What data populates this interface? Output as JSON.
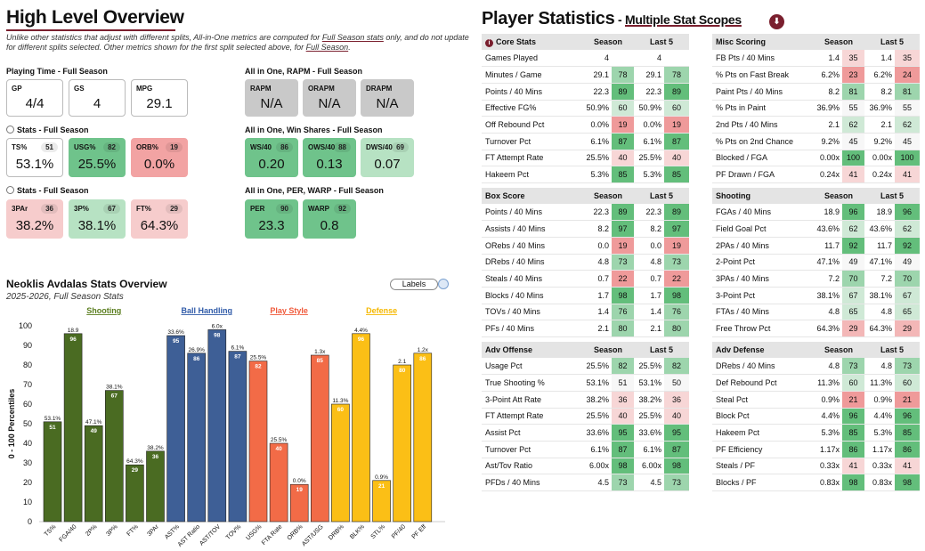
{
  "overview": {
    "title": "High Level Overview",
    "note_parts": [
      "Unlike other statistics that adjust with different splits, All-in-One metrics are computed for ",
      "Full Season stats",
      " only, and do not update for different splits selected. Other metrics shown for the first split selected above, for ",
      "Full Season",
      "."
    ],
    "sections": {
      "playing_time": "Playing Time - Full Season",
      "stats1": "Stats - Full Season",
      "stats2": "Stats - Full Season",
      "rapm": "All in One, RAPM - Full Season",
      "winshares": "All in One, Win Shares - Full Season",
      "per_warp": "All in One, PER, WARP - Full Season"
    },
    "playing_time": [
      {
        "label": "GP",
        "value": "4/4"
      },
      {
        "label": "GS",
        "value": "4"
      },
      {
        "label": "MPG",
        "value": "29.1"
      }
    ],
    "stats1": [
      {
        "label": "TS%",
        "pct": "51",
        "value": "53.1%",
        "tone": "plain"
      },
      {
        "label": "USG%",
        "pct": "82",
        "value": "25.5%",
        "tone": "green"
      },
      {
        "label": "ORB%",
        "pct": "19",
        "value": "0.0%",
        "tone": "red"
      }
    ],
    "stats2": [
      {
        "label": "3PAr",
        "pct": "36",
        "value": "38.2%",
        "tone": "lred"
      },
      {
        "label": "3P%",
        "pct": "67",
        "value": "38.1%",
        "tone": "lgreen"
      },
      {
        "label": "FT%",
        "pct": "29",
        "value": "64.3%",
        "tone": "lred"
      }
    ],
    "rapm": [
      {
        "label": "RAPM",
        "value": "N/A"
      },
      {
        "label": "ORAPM",
        "value": "N/A"
      },
      {
        "label": "DRAPM",
        "value": "N/A"
      }
    ],
    "winshares": [
      {
        "label": "WS/40",
        "pct": "86",
        "value": "0.20",
        "tone": "green"
      },
      {
        "label": "OWS/40",
        "pct": "88",
        "value": "0.13",
        "tone": "green"
      },
      {
        "label": "DWS/40",
        "pct": "69",
        "value": "0.07",
        "tone": "lgreen"
      }
    ],
    "per_warp": [
      {
        "label": "PER",
        "pct": "90",
        "value": "23.3",
        "tone": "green"
      },
      {
        "label": "WARP",
        "pct": "92",
        "value": "0.8",
        "tone": "green"
      }
    ]
  },
  "chart_header": {
    "title": "Neoklis Avdalas Stats Overview",
    "subtitle": "2025-2026, Full Season Stats",
    "labels_button": "Labels"
  },
  "chart_data": {
    "type": "bar",
    "title": "Neoklis Avdalas Stats Overview",
    "ylabel": "0 - 100 Percentiles",
    "ylim": [
      0,
      100
    ],
    "yticks": [
      0,
      10,
      20,
      30,
      40,
      50,
      60,
      70,
      80,
      90,
      100
    ],
    "groups": [
      {
        "name": "Shooting",
        "color": "#4a6b22",
        "header_color": "#5a7d1e"
      },
      {
        "name": "Ball Handling",
        "color": "#3e5f96",
        "header_color": "#2f5aa8"
      },
      {
        "name": "Play Style",
        "color": "#f26b47",
        "header_color": "#f0593a"
      },
      {
        "name": "Defense",
        "color": "#fbbf16",
        "header_color": "#f5b800"
      }
    ],
    "bars": [
      {
        "cat": "TS%",
        "pct": 51,
        "stat": "53.1%",
        "group": 0
      },
      {
        "cat": "FGA/40",
        "pct": 96,
        "stat": "18.9",
        "group": 0
      },
      {
        "cat": "2P%",
        "pct": 49,
        "stat": "47.1%",
        "group": 0
      },
      {
        "cat": "3P%",
        "pct": 67,
        "stat": "38.1%",
        "group": 0
      },
      {
        "cat": "FT%",
        "pct": 29,
        "stat": "64.3%",
        "group": 0
      },
      {
        "cat": "3PAr",
        "pct": 36,
        "stat": "38.2%",
        "group": 0
      },
      {
        "cat": "AST%",
        "pct": 95,
        "stat": "33.6%",
        "group": 1
      },
      {
        "cat": "AST Ratio",
        "pct": 86,
        "stat": "26.9%",
        "group": 1
      },
      {
        "cat": "AST/TOV",
        "pct": 98,
        "stat": "6.0x",
        "group": 1
      },
      {
        "cat": "TOV%",
        "pct": 87,
        "stat": "6.1%",
        "group": 1
      },
      {
        "cat": "USG%",
        "pct": 82,
        "stat": "25.5%",
        "group": 2
      },
      {
        "cat": "FTA Rate",
        "pct": 40,
        "stat": "25.5%",
        "group": 2
      },
      {
        "cat": "ORB%",
        "pct": 19,
        "stat": "0.0%",
        "group": 2
      },
      {
        "cat": "AST/USG",
        "pct": 85,
        "stat": "1.3x",
        "group": 2
      },
      {
        "cat": "DRB%",
        "pct": 60,
        "stat": "11.3%",
        "group": 3
      },
      {
        "cat": "BLK%",
        "pct": 96,
        "stat": "4.4%",
        "group": 3
      },
      {
        "cat": "STL%",
        "pct": 21,
        "stat": "0.9%",
        "group": 3
      },
      {
        "cat": "PF/40",
        "pct": 80,
        "stat": "2.1",
        "group": 3
      },
      {
        "cat": "PF Eff",
        "pct": 86,
        "stat": "1.2x",
        "group": 3
      }
    ]
  },
  "player_stats": {
    "title": "Player Statistics",
    "subtitle_prefix": " - ",
    "subtitle": "Multiple Stat Scopes",
    "download_icon": "download-icon",
    "col_season": "Season",
    "col_last5": "Last 5",
    "tables": [
      {
        "id": "core",
        "header": "Core Stats",
        "info_icon": true,
        "rows": [
          [
            "Games Played",
            "4",
            "",
            "4",
            ""
          ],
          [
            "Minutes / Game",
            "29.1",
            "78",
            "29.1",
            "78"
          ],
          [
            "Points / 40 Mins",
            "22.3",
            "89",
            "22.3",
            "89"
          ],
          [
            "Effective FG%",
            "50.9%",
            "60",
            "50.9%",
            "60"
          ],
          [
            "Off Rebound Pct",
            "0.0%",
            "19",
            "0.0%",
            "19"
          ],
          [
            "Turnover Pct",
            "6.1%",
            "87",
            "6.1%",
            "87"
          ],
          [
            "FT Attempt Rate",
            "25.5%",
            "40",
            "25.5%",
            "40"
          ],
          [
            "Hakeem Pct",
            "5.3%",
            "85",
            "5.3%",
            "85"
          ]
        ]
      },
      {
        "id": "misc",
        "header": "Misc Scoring",
        "rows": [
          [
            "FB Pts / 40 Mins",
            "1.4",
            "35",
            "1.4",
            "35"
          ],
          [
            "% Pts on Fast Break",
            "6.2%",
            "23",
            "6.2%",
            "24"
          ],
          [
            "Paint Pts / 40 Mins",
            "8.2",
            "81",
            "8.2",
            "81"
          ],
          [
            "% Pts in Paint",
            "36.9%",
            "55",
            "36.9%",
            "55"
          ],
          [
            "2nd Pts / 40 Mins",
            "2.1",
            "62",
            "2.1",
            "62"
          ],
          [
            "% Pts on 2nd Chance",
            "9.2%",
            "45",
            "9.2%",
            "45"
          ],
          [
            "Blocked / FGA",
            "0.00x",
            "100",
            "0.00x",
            "100"
          ],
          [
            "PF Drawn / FGA",
            "0.24x",
            "41",
            "0.24x",
            "41"
          ]
        ]
      },
      {
        "id": "box",
        "header": "Box Score",
        "rows": [
          [
            "Points / 40 Mins",
            "22.3",
            "89",
            "22.3",
            "89"
          ],
          [
            "Assists / 40 Mins",
            "8.2",
            "97",
            "8.2",
            "97"
          ],
          [
            "ORebs / 40 Mins",
            "0.0",
            "19",
            "0.0",
            "19"
          ],
          [
            "DRebs / 40 Mins",
            "4.8",
            "73",
            "4.8",
            "73"
          ],
          [
            "Steals / 40 Mins",
            "0.7",
            "22",
            "0.7",
            "22"
          ],
          [
            "Blocks / 40 Mins",
            "1.7",
            "98",
            "1.7",
            "98"
          ],
          [
            "TOVs / 40 Mins",
            "1.4",
            "76",
            "1.4",
            "76"
          ],
          [
            "PFs / 40 Mins",
            "2.1",
            "80",
            "2.1",
            "80"
          ]
        ]
      },
      {
        "id": "shooting",
        "header": "Shooting",
        "rows": [
          [
            "FGAs / 40 Mins",
            "18.9",
            "96",
            "18.9",
            "96"
          ],
          [
            "Field Goal Pct",
            "43.6%",
            "62",
            "43.6%",
            "62"
          ],
          [
            "2PAs / 40 Mins",
            "11.7",
            "92",
            "11.7",
            "92"
          ],
          [
            "2-Point Pct",
            "47.1%",
            "49",
            "47.1%",
            "49"
          ],
          [
            "3PAs / 40 Mins",
            "7.2",
            "70",
            "7.2",
            "70"
          ],
          [
            "3-Point Pct",
            "38.1%",
            "67",
            "38.1%",
            "67"
          ],
          [
            "FTAs / 40 Mins",
            "4.8",
            "65",
            "4.8",
            "65"
          ],
          [
            "Free Throw Pct",
            "64.3%",
            "29",
            "64.3%",
            "29"
          ]
        ]
      },
      {
        "id": "advoff",
        "header": "Adv Offense",
        "rows": [
          [
            "Usage Pct",
            "25.5%",
            "82",
            "25.5%",
            "82"
          ],
          [
            "True Shooting %",
            "53.1%",
            "51",
            "53.1%",
            "50"
          ],
          [
            "3-Point Att Rate",
            "38.2%",
            "36",
            "38.2%",
            "36"
          ],
          [
            "FT Attempt Rate",
            "25.5%",
            "40",
            "25.5%",
            "40"
          ],
          [
            "Assist Pct",
            "33.6%",
            "95",
            "33.6%",
            "95"
          ],
          [
            "Turnover Pct",
            "6.1%",
            "87",
            "6.1%",
            "87"
          ],
          [
            "Ast/Tov Ratio",
            "6.00x",
            "98",
            "6.00x",
            "98"
          ],
          [
            "PFDs / 40 Mins",
            "4.5",
            "73",
            "4.5",
            "73"
          ]
        ]
      },
      {
        "id": "advdef",
        "header": "Adv Defense",
        "rows": [
          [
            "DRebs / 40 Mins",
            "4.8",
            "73",
            "4.8",
            "73"
          ],
          [
            "Def Rebound Pct",
            "11.3%",
            "60",
            "11.3%",
            "60"
          ],
          [
            "Steal Pct",
            "0.9%",
            "21",
            "0.9%",
            "21"
          ],
          [
            "Block Pct",
            "4.4%",
            "96",
            "4.4%",
            "96"
          ],
          [
            "Hakeem Pct",
            "5.3%",
            "85",
            "5.3%",
            "85"
          ],
          [
            "PF Efficiency",
            "1.17x",
            "86",
            "1.17x",
            "86"
          ],
          [
            "Steals / PF",
            "0.33x",
            "41",
            "0.33x",
            "41"
          ],
          [
            "Blocks / PF",
            "0.83x",
            "98",
            "0.83x",
            "98"
          ]
        ]
      }
    ]
  }
}
